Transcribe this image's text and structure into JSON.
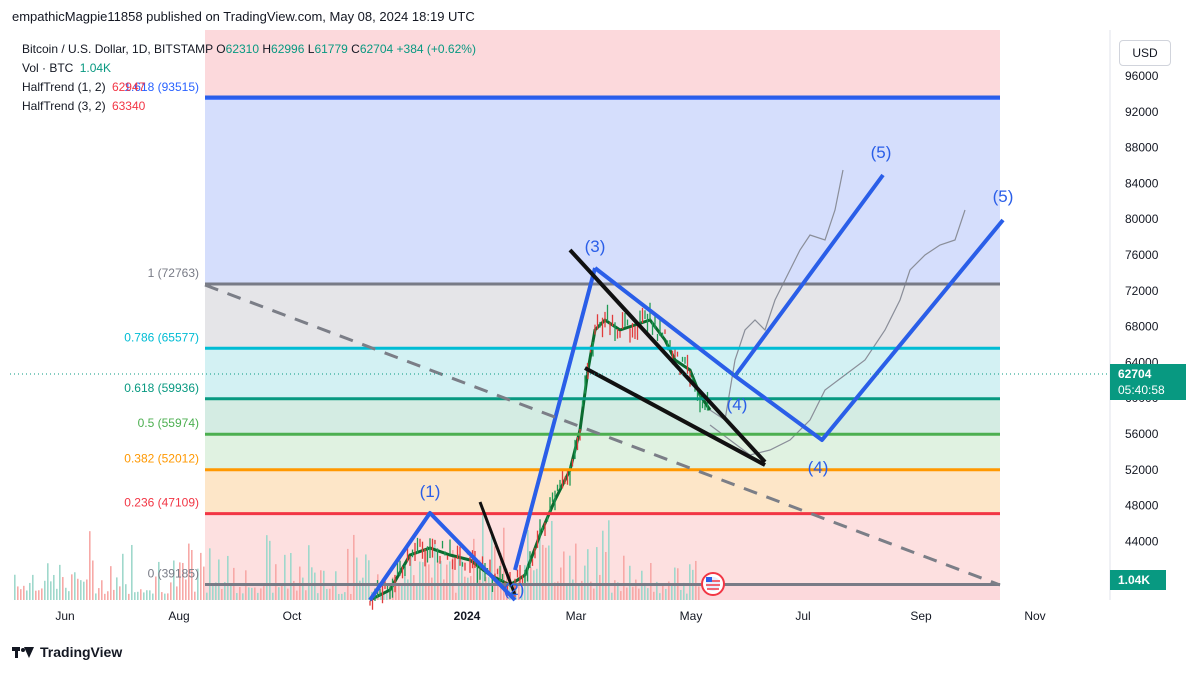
{
  "header": {
    "publisher": "empathicMagpie11858 published on TradingView.com, May 08, 2024 18:19 UTC"
  },
  "legend": {
    "symbol": "Bitcoin / U.S. Dollar, 1D, BITSTAMP",
    "open_label": "O",
    "open": "62310",
    "high_label": "H",
    "high": "62996",
    "low_label": "L",
    "low": "61779",
    "close_label": "C",
    "close": "62704",
    "change": "+384 (+0.62%)",
    "vol_label": "Vol · BTC",
    "vol": "1.04K",
    "ht1_label": "HalfTrend (1, 2)",
    "ht1": "62947",
    "ht2_label": "HalfTrend (3, 2)",
    "ht2": "63340"
  },
  "currency": "USD",
  "price_badge": {
    "price": "62704",
    "countdown": "05:40:58",
    "color": "#089981"
  },
  "volume_badge": {
    "value": "1.04K",
    "color": "#089981"
  },
  "footer": {
    "brand": "TradingView"
  },
  "chart_data": {
    "type": "line",
    "y_axis": {
      "ticks": [
        44000,
        48000,
        52000,
        56000,
        60000,
        64000,
        68000,
        72000,
        76000,
        80000,
        84000,
        88000,
        92000,
        96000
      ],
      "range": [
        38500,
        97500
      ]
    },
    "x_axis": {
      "ticks": [
        "Jun",
        "Aug",
        "Oct",
        "2024",
        "Mar",
        "May",
        "Jul",
        "Sep",
        "Nov"
      ]
    },
    "fib_levels": [
      {
        "label": "0 (39185)",
        "price": 39185,
        "color": "#787b86"
      },
      {
        "label": "0.236 (47109)",
        "price": 47109,
        "color": "#f23645"
      },
      {
        "label": "0.382 (52012)",
        "price": 52012,
        "color": "#ff9800"
      },
      {
        "label": "0.5 (55974)",
        "price": 55974,
        "color": "#4caf50"
      },
      {
        "label": "0.618 (59936)",
        "price": 59936,
        "color": "#089981"
      },
      {
        "label": "0.786 (65577)",
        "price": 65577,
        "color": "#00bcd4"
      },
      {
        "label": "1 (72763)",
        "price": 72763,
        "color": "#787b86"
      },
      {
        "label": "1.618 (93515)",
        "price": 93515,
        "color": "#2962ff"
      }
    ],
    "wave_labels": [
      "(1)",
      "(2)",
      "(3)",
      "(4)",
      "(5)",
      "(4)",
      "(5)"
    ],
    "last_price": 62704
  }
}
